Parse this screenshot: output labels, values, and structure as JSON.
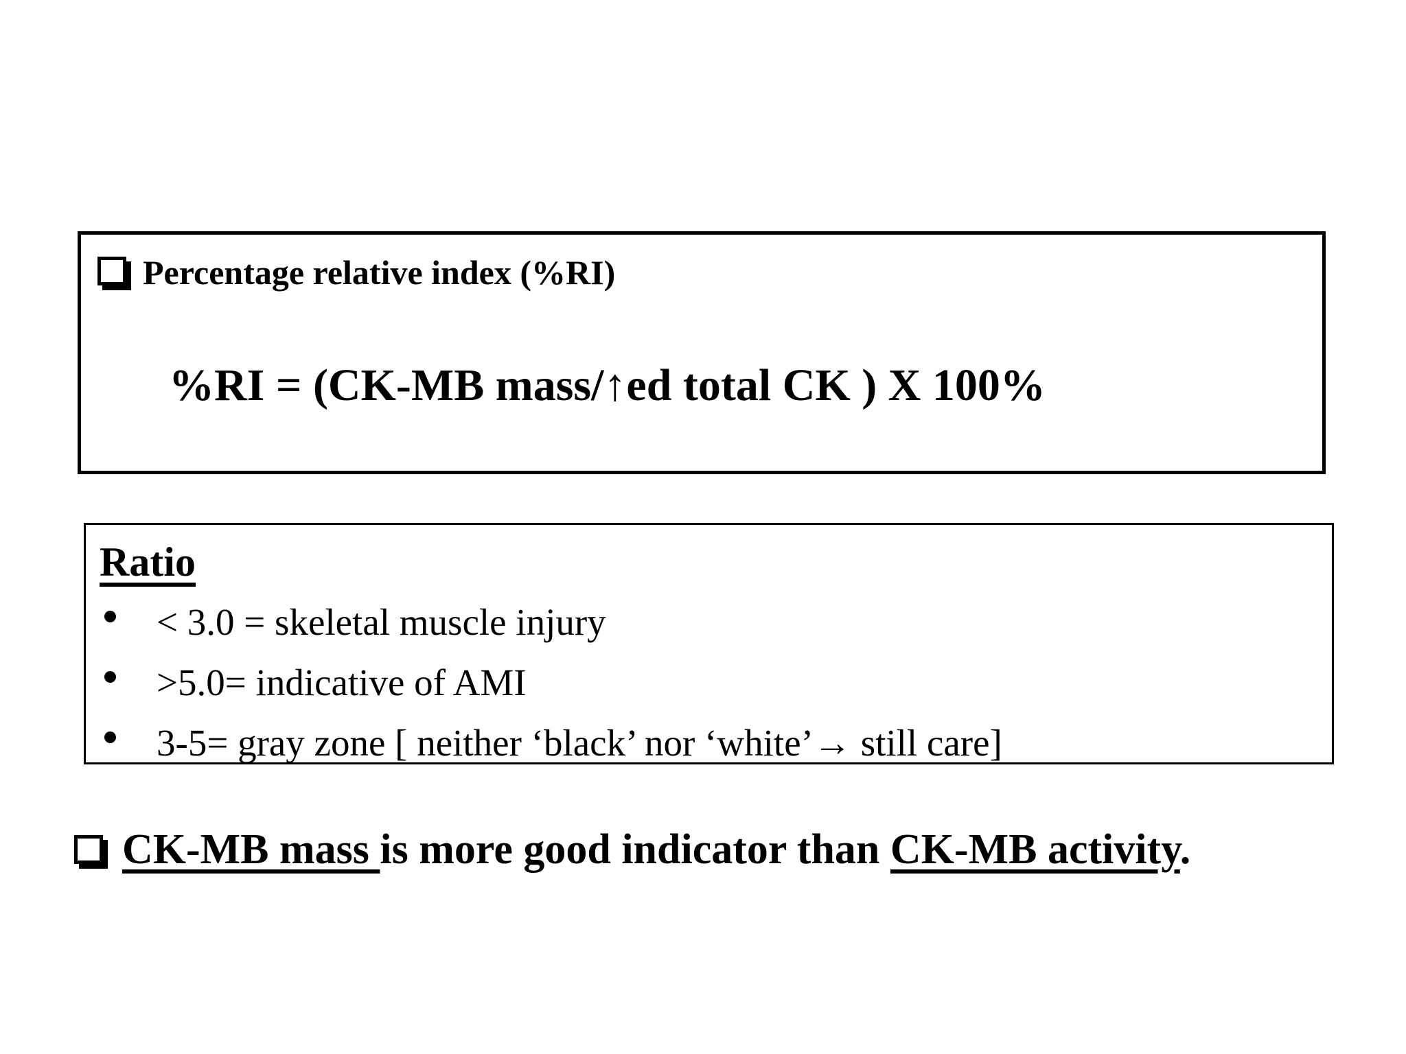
{
  "slide": {
    "background_color": "#ffffff",
    "text_color": "#000000",
    "box1": {
      "bullet_icon": "shadowed-checkbox-icon",
      "title": "Percentage relative index (%RI)",
      "formula": "%RI = (CK-MB mass/↑ed total CK ) X 100%"
    },
    "box2": {
      "heading": "Ratio",
      "bullet_icon": "bullet-dot-icon",
      "bullets": [
        "< 3.0 = skeletal muscle injury",
        ">5.0= indicative of AMI",
        "3-5= gray zone [ neither ‘black’ nor ‘white’→ still care]"
      ]
    },
    "footer": {
      "bullet_icon": "shadowed-checkbox-icon",
      "underlined_lead": "CK-MB mass ",
      "middle": "is more good indicator than ",
      "underlined_tail": "CK-MB activity",
      "period": "."
    }
  }
}
